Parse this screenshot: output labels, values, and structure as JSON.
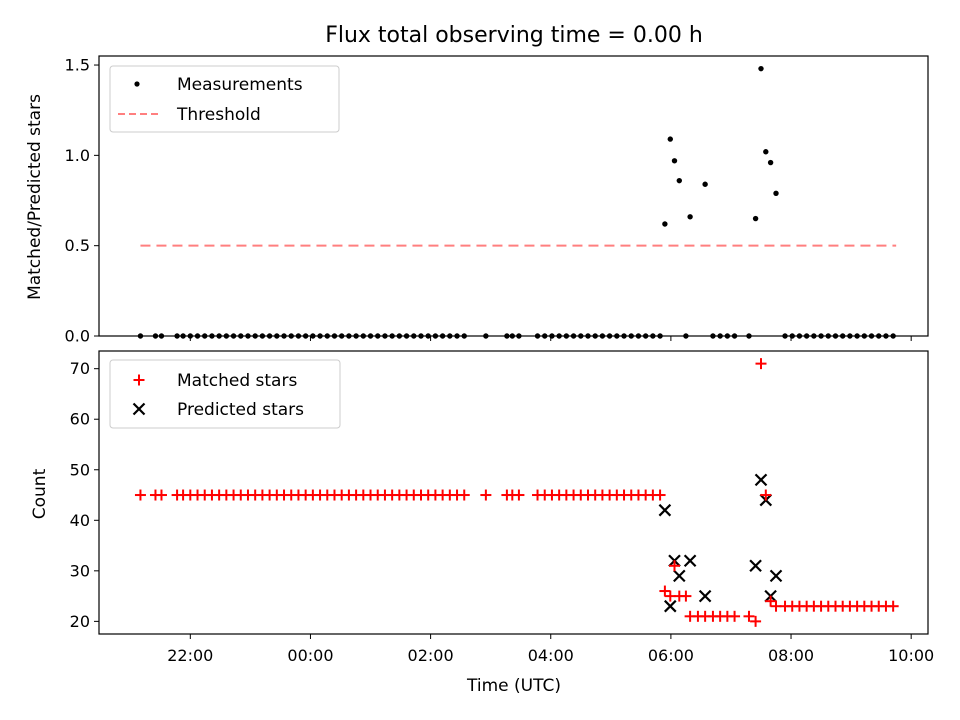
{
  "title": "Flux total observing time = 0.00 h",
  "colors": {
    "measurements": "#000000",
    "threshold": "#ff7f7f",
    "matched": "#ff0000",
    "predicted": "#000000",
    "axis": "#000000"
  },
  "chart_data": [
    {
      "type": "scatter",
      "panel": "top",
      "title": "Flux total observing time = 0.00 h",
      "xlabel": "",
      "ylabel": "Matched/Predicted stars",
      "x_unit": "hours since 00:00 UTC",
      "xlim": [
        -3.52,
        10.28
      ],
      "ylim": [
        0,
        1.55
      ],
      "yticks": [
        0.0,
        0.5,
        1.0,
        1.5
      ],
      "ytick_labels": [
        "0.0",
        "0.5",
        "1.0",
        "1.5"
      ],
      "legend_placement": "upper-left",
      "grid": false,
      "series": [
        {
          "name": "Measurements",
          "marker": "dot",
          "points": [
            [
              5.9,
              0.62
            ],
            [
              5.99,
              1.09
            ],
            [
              6.06,
              0.97
            ],
            [
              6.14,
              0.86
            ],
            [
              6.32,
              0.66
            ],
            [
              6.57,
              0.84
            ],
            [
              7.41,
              0.65
            ],
            [
              7.5,
              1.48
            ],
            [
              7.58,
              1.02
            ],
            [
              7.66,
              0.96
            ],
            [
              7.75,
              0.79
            ],
            [
              -2.83,
              0.0
            ],
            [
              -2.58,
              0.0
            ],
            [
              -2.48,
              0.0
            ],
            [
              -2.22,
              0.0
            ],
            [
              -2.12,
              0.0
            ],
            [
              -2.0,
              0.0
            ],
            [
              -1.88,
              0.0
            ],
            [
              -1.76,
              0.0
            ],
            [
              -1.64,
              0.0
            ],
            [
              -1.52,
              0.0
            ],
            [
              -1.4,
              0.0
            ],
            [
              -1.28,
              0.0
            ],
            [
              -1.16,
              0.0
            ],
            [
              -1.04,
              0.0
            ],
            [
              -0.92,
              0.0
            ],
            [
              -0.8,
              0.0
            ],
            [
              -0.68,
              0.0
            ],
            [
              -0.56,
              0.0
            ],
            [
              -0.44,
              0.0
            ],
            [
              -0.32,
              0.0
            ],
            [
              -0.2,
              0.0
            ],
            [
              -0.08,
              0.0
            ],
            [
              0.04,
              0.0
            ],
            [
              0.16,
              0.0
            ],
            [
              0.28,
              0.0
            ],
            [
              0.4,
              0.0
            ],
            [
              0.52,
              0.0
            ],
            [
              0.64,
              0.0
            ],
            [
              0.76,
              0.0
            ],
            [
              0.88,
              0.0
            ],
            [
              1.0,
              0.0
            ],
            [
              1.12,
              0.0
            ],
            [
              1.24,
              0.0
            ],
            [
              1.36,
              0.0
            ],
            [
              1.48,
              0.0
            ],
            [
              1.6,
              0.0
            ],
            [
              1.72,
              0.0
            ],
            [
              1.84,
              0.0
            ],
            [
              1.96,
              0.0
            ],
            [
              2.08,
              0.0
            ],
            [
              2.2,
              0.0
            ],
            [
              2.32,
              0.0
            ],
            [
              2.44,
              0.0
            ],
            [
              2.56,
              0.0
            ],
            [
              2.92,
              0.0
            ],
            [
              3.27,
              0.0
            ],
            [
              3.36,
              0.0
            ],
            [
              3.47,
              0.0
            ],
            [
              3.78,
              0.0
            ],
            [
              3.9,
              0.0
            ],
            [
              4.02,
              0.0
            ],
            [
              4.14,
              0.0
            ],
            [
              4.26,
              0.0
            ],
            [
              4.38,
              0.0
            ],
            [
              4.5,
              0.0
            ],
            [
              4.62,
              0.0
            ],
            [
              4.74,
              0.0
            ],
            [
              4.86,
              0.0
            ],
            [
              4.98,
              0.0
            ],
            [
              5.1,
              0.0
            ],
            [
              5.22,
              0.0
            ],
            [
              5.34,
              0.0
            ],
            [
              5.46,
              0.0
            ],
            [
              5.58,
              0.0
            ],
            [
              5.7,
              0.0
            ],
            [
              5.82,
              0.0
            ],
            [
              6.25,
              0.0
            ],
            [
              6.7,
              0.0
            ],
            [
              6.82,
              0.0
            ],
            [
              6.94,
              0.0
            ],
            [
              7.06,
              0.0
            ],
            [
              7.3,
              0.0
            ],
            [
              7.9,
              0.0
            ],
            [
              8.02,
              0.0
            ],
            [
              8.14,
              0.0
            ],
            [
              8.26,
              0.0
            ],
            [
              8.38,
              0.0
            ],
            [
              8.5,
              0.0
            ],
            [
              8.62,
              0.0
            ],
            [
              8.74,
              0.0
            ],
            [
              8.86,
              0.0
            ],
            [
              8.98,
              0.0
            ],
            [
              9.1,
              0.0
            ],
            [
              9.22,
              0.0
            ],
            [
              9.34,
              0.0
            ],
            [
              9.46,
              0.0
            ],
            [
              9.58,
              0.0
            ],
            [
              9.7,
              0.0
            ]
          ]
        },
        {
          "name": "Threshold",
          "marker": "dashed-line",
          "points": [
            [
              -2.83,
              0.5
            ],
            [
              9.75,
              0.5
            ]
          ]
        }
      ]
    },
    {
      "type": "scatter",
      "panel": "bottom",
      "title": "",
      "xlabel": "Time (UTC)",
      "ylabel": "Count",
      "x_unit": "hours since 00:00 UTC",
      "xlim": [
        -3.52,
        10.28
      ],
      "ylim": [
        17.5,
        73.5
      ],
      "yticks": [
        20,
        30,
        40,
        50,
        60,
        70
      ],
      "ytick_labels": [
        "20",
        "30",
        "40",
        "50",
        "60",
        "70"
      ],
      "xticks": [
        -2,
        0,
        2,
        4,
        6,
        8,
        10
      ],
      "xtick_labels": [
        "22:00",
        "00:00",
        "02:00",
        "04:00",
        "06:00",
        "08:00",
        "10:00"
      ],
      "legend_placement": "upper-left",
      "grid": false,
      "series": [
        {
          "name": "Matched stars",
          "marker": "plus",
          "points": [
            [
              -2.83,
              45
            ],
            [
              -2.58,
              45
            ],
            [
              -2.48,
              45
            ],
            [
              -2.22,
              45
            ],
            [
              -2.12,
              45
            ],
            [
              -2.0,
              45
            ],
            [
              -1.88,
              45
            ],
            [
              -1.76,
              45
            ],
            [
              -1.64,
              45
            ],
            [
              -1.52,
              45
            ],
            [
              -1.4,
              45
            ],
            [
              -1.28,
              45
            ],
            [
              -1.16,
              45
            ],
            [
              -1.04,
              45
            ],
            [
              -0.92,
              45
            ],
            [
              -0.8,
              45
            ],
            [
              -0.68,
              45
            ],
            [
              -0.56,
              45
            ],
            [
              -0.44,
              45
            ],
            [
              -0.32,
              45
            ],
            [
              -0.2,
              45
            ],
            [
              -0.08,
              45
            ],
            [
              0.04,
              45
            ],
            [
              0.16,
              45
            ],
            [
              0.28,
              45
            ],
            [
              0.4,
              45
            ],
            [
              0.52,
              45
            ],
            [
              0.64,
              45
            ],
            [
              0.76,
              45
            ],
            [
              0.88,
              45
            ],
            [
              1.0,
              45
            ],
            [
              1.12,
              45
            ],
            [
              1.24,
              45
            ],
            [
              1.36,
              45
            ],
            [
              1.48,
              45
            ],
            [
              1.6,
              45
            ],
            [
              1.72,
              45
            ],
            [
              1.84,
              45
            ],
            [
              1.96,
              45
            ],
            [
              2.08,
              45
            ],
            [
              2.2,
              45
            ],
            [
              2.32,
              45
            ],
            [
              2.44,
              45
            ],
            [
              2.56,
              45
            ],
            [
              2.92,
              45
            ],
            [
              3.27,
              45
            ],
            [
              3.36,
              45
            ],
            [
              3.47,
              45
            ],
            [
              3.78,
              45
            ],
            [
              3.9,
              45
            ],
            [
              4.02,
              45
            ],
            [
              4.14,
              45
            ],
            [
              4.26,
              45
            ],
            [
              4.38,
              45
            ],
            [
              4.5,
              45
            ],
            [
              4.62,
              45
            ],
            [
              4.74,
              45
            ],
            [
              4.86,
              45
            ],
            [
              4.98,
              45
            ],
            [
              5.1,
              45
            ],
            [
              5.22,
              45
            ],
            [
              5.34,
              45
            ],
            [
              5.46,
              45
            ],
            [
              5.58,
              45
            ],
            [
              5.7,
              45
            ],
            [
              5.82,
              45
            ],
            [
              5.9,
              26
            ],
            [
              5.99,
              25
            ],
            [
              6.06,
              31
            ],
            [
              6.14,
              25
            ],
            [
              6.25,
              25
            ],
            [
              6.32,
              21
            ],
            [
              6.45,
              21
            ],
            [
              6.57,
              21
            ],
            [
              6.7,
              21
            ],
            [
              6.82,
              21
            ],
            [
              6.94,
              21
            ],
            [
              7.06,
              21
            ],
            [
              7.3,
              21
            ],
            [
              7.41,
              20
            ],
            [
              7.5,
              71
            ],
            [
              7.58,
              45
            ],
            [
              7.66,
              24
            ],
            [
              7.75,
              23
            ],
            [
              7.9,
              23
            ],
            [
              8.02,
              23
            ],
            [
              8.14,
              23
            ],
            [
              8.26,
              23
            ],
            [
              8.38,
              23
            ],
            [
              8.5,
              23
            ],
            [
              8.62,
              23
            ],
            [
              8.74,
              23
            ],
            [
              8.86,
              23
            ],
            [
              8.98,
              23
            ],
            [
              9.1,
              23
            ],
            [
              9.22,
              23
            ],
            [
              9.34,
              23
            ],
            [
              9.46,
              23
            ],
            [
              9.58,
              23
            ],
            [
              9.7,
              23
            ]
          ]
        },
        {
          "name": "Predicted stars",
          "marker": "x",
          "points": [
            [
              5.9,
              42
            ],
            [
              5.99,
              23
            ],
            [
              6.06,
              32
            ],
            [
              6.14,
              29
            ],
            [
              6.32,
              32
            ],
            [
              6.57,
              25
            ],
            [
              7.41,
              31
            ],
            [
              7.5,
              48
            ],
            [
              7.58,
              44
            ],
            [
              7.66,
              25
            ],
            [
              7.75,
              29
            ]
          ]
        }
      ]
    }
  ]
}
